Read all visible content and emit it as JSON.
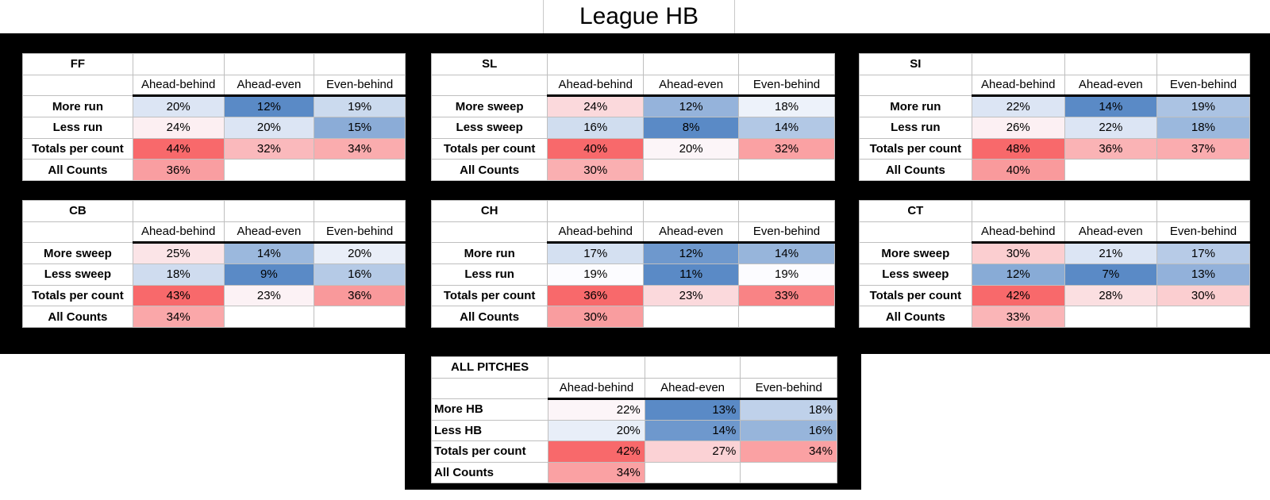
{
  "title": "League HB",
  "colors": {
    "background": "#FFFFFF",
    "panel": "#000000",
    "gridline": "#BFBFBF",
    "text": "#000000"
  },
  "heat_scale": {
    "low_color": "#5A8AC6",
    "mid_color": "#FCFCFF",
    "high_color": "#F8696B",
    "midpoint": "median",
    "applied": "per table"
  },
  "chart_data": [
    {
      "type": "heatmap",
      "title": "FF",
      "columns": [
        "Ahead-behind",
        "Ahead-even",
        "Even-behind"
      ],
      "rows": [
        "More run",
        "Less run",
        "Totals per count",
        "All Counts"
      ],
      "values": [
        [
          20,
          12,
          19
        ],
        [
          24,
          20,
          15
        ],
        [
          44,
          32,
          34
        ],
        [
          36,
          null,
          null
        ]
      ],
      "unit": "%"
    },
    {
      "type": "heatmap",
      "title": "SL",
      "columns": [
        "Ahead-behind",
        "Ahead-even",
        "Even-behind"
      ],
      "rows": [
        "More sweep",
        "Less sweep",
        "Totals per count",
        "All Counts"
      ],
      "values": [
        [
          24,
          12,
          18
        ],
        [
          16,
          8,
          14
        ],
        [
          40,
          20,
          32
        ],
        [
          30,
          null,
          null
        ]
      ],
      "unit": "%"
    },
    {
      "type": "heatmap",
      "title": "SI",
      "columns": [
        "Ahead-behind",
        "Ahead-even",
        "Even-behind"
      ],
      "rows": [
        "More run",
        "Less run",
        "Totals per count",
        "All Counts"
      ],
      "values": [
        [
          22,
          14,
          19
        ],
        [
          26,
          22,
          18
        ],
        [
          48,
          36,
          37
        ],
        [
          40,
          null,
          null
        ]
      ],
      "unit": "%"
    },
    {
      "type": "heatmap",
      "title": "CB",
      "columns": [
        "Ahead-behind",
        "Ahead-even",
        "Even-behind"
      ],
      "rows": [
        "More sweep",
        "Less sweep",
        "Totals per count",
        "All Counts"
      ],
      "values": [
        [
          25,
          14,
          20
        ],
        [
          18,
          9,
          16
        ],
        [
          43,
          23,
          36
        ],
        [
          34,
          null,
          null
        ]
      ],
      "unit": "%"
    },
    {
      "type": "heatmap",
      "title": "CH",
      "columns": [
        "Ahead-behind",
        "Ahead-even",
        "Even-behind"
      ],
      "rows": [
        "More run",
        "Less run",
        "Totals per count",
        "All Counts"
      ],
      "values": [
        [
          17,
          12,
          14
        ],
        [
          19,
          11,
          19
        ],
        [
          36,
          23,
          33
        ],
        [
          30,
          null,
          null
        ]
      ],
      "unit": "%"
    },
    {
      "type": "heatmap",
      "title": "CT",
      "columns": [
        "Ahead-behind",
        "Ahead-even",
        "Even-behind"
      ],
      "rows": [
        "More sweep",
        "Less sweep",
        "Totals per count",
        "All Counts"
      ],
      "values": [
        [
          30,
          21,
          17
        ],
        [
          12,
          7,
          13
        ],
        [
          42,
          28,
          30
        ],
        [
          33,
          null,
          null
        ]
      ],
      "unit": "%"
    },
    {
      "type": "heatmap",
      "title": "ALL PITCHES",
      "columns": [
        "Ahead-behind",
        "Ahead-even",
        "Even-behind"
      ],
      "rows": [
        "More HB",
        "Less HB",
        "Totals per count",
        "All Counts"
      ],
      "values": [
        [
          22,
          13,
          18
        ],
        [
          20,
          14,
          16
        ],
        [
          42,
          27,
          34
        ],
        [
          34,
          null,
          null
        ]
      ],
      "unit": "%"
    }
  ]
}
